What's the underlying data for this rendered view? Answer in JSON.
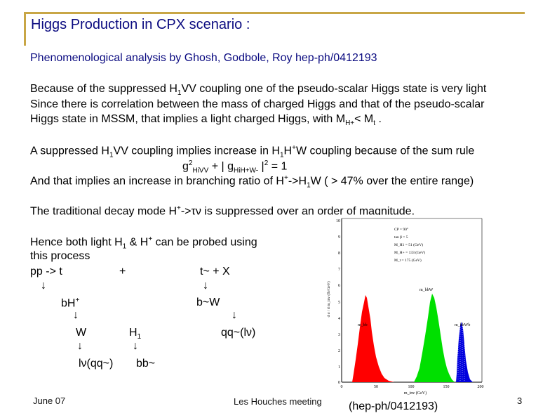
{
  "title": "Higgs Production in CPX scenario :",
  "subtitle": "Phenomenological analysis by Ghosh, Godbole, Roy  hep-ph/0412193",
  "para1": {
    "l1a": "Because of the suppressed H",
    "l1sub": "1",
    "l1b": "VV coupling one of the pseudo-scalar Higgs state is very light",
    "l2": "Since there is correlation between the mass of charged Higgs and that of the pseudo-scalar",
    "l3a": "Higgs state in MSSM, that implies a light charged Higgs, with M",
    "l3sub1": "H+",
    "l3b": "< M",
    "l3sub2": "t",
    "l3c": " ."
  },
  "para2": {
    "l1a": "A suppressed H",
    "l1sub1": "1",
    "l1b": "VV coupling implies increase in H",
    "l1sub2": "1",
    "l1c": "H",
    "l1sup": "+",
    "l1d": "W coupling because of the sum rule",
    "l2a": "g",
    "l2sup": "2",
    "l2sub1": "HiVV",
    "l2b": " + | g",
    "l2sub2": "HiH+W-",
    "l2c": " |",
    "l2sup2": "2",
    "l2d": " = 1",
    "l3a": "And that implies an increase in branching ratio of H",
    "l3sup": "+",
    "l3b": "->H",
    "l3sub": "1",
    "l3c": "W ( > 47% over the entire range)"
  },
  "para3": {
    "a": "The traditional decay mode H",
    "sup": "+",
    "b": "->τν  is suppressed over an order of magnitude."
  },
  "process": {
    "l1a": "Hence both light H",
    "l1sub": "1",
    "l1b": " & H",
    "l1sup": "+",
    "l1c": " can be probed using",
    "l2": "this process",
    "pp": "pp -> t",
    "plus": "+",
    "tbar": "t~  + X",
    "arrow": "↓",
    "bH": "b",
    "bHa": "H",
    "bHsup": "+",
    "bW": "b~W",
    "W": "W",
    "H1": "H",
    "H1sub": "1",
    "qq": "qq~(lν)",
    "lnu": "lν(qq~)",
    "bb": "bb~"
  },
  "plot": {
    "legend_title": "CP = 90°",
    "legend_tanb": "tan β = 5",
    "legend_mh1": "M_H1 = 51 (GeV)",
    "legend_mhp": "M_H+ = 133 (GeV)",
    "legend_mt": "M_t = 175 (GeV)",
    "ylabel": "d σ / d m_inv (fb/GeV)",
    "xlabel": "m_inv (GeV)",
    "label_mbb": "m_bb",
    "label_mbbW": "m_bbW",
    "label_mbbWb": "m_bbWb",
    "y_ticks": [
      "10",
      "9",
      "8",
      "7",
      "6",
      "5",
      "4",
      "3",
      "2",
      "1",
      "0"
    ],
    "x_ticks": [
      "0",
      "50",
      "100",
      "150",
      "200"
    ]
  },
  "caption": "(hep-ph/0412193)",
  "footer": {
    "date": "June 07",
    "meeting": "Les Houches meeting",
    "page": "3"
  }
}
